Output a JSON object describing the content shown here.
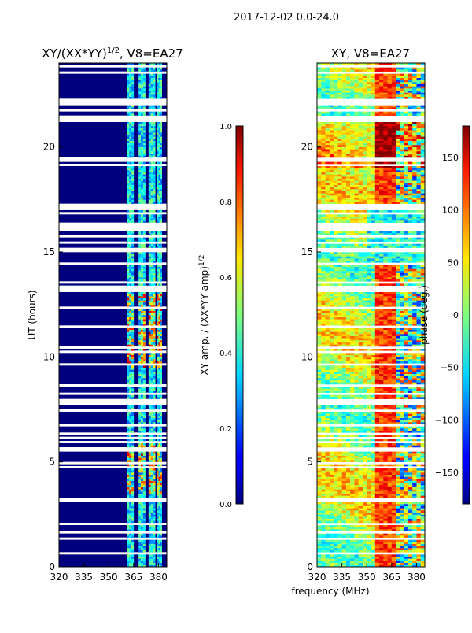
{
  "figure": {
    "suptitle": "2017-12-02 0.0-24.0",
    "xlabel": "frequency (MHz)"
  },
  "chart_data": [
    {
      "type": "heatmap",
      "title_main": "XY/(XX*YY)",
      "title_sup": "1/2",
      "title_tail": ", V8=EA27",
      "xlabel": "",
      "ylabel": "UT (hours)",
      "xlim": [
        320,
        385
      ],
      "ylim": [
        0,
        24
      ],
      "xticks": [
        320,
        335,
        350,
        365,
        380
      ],
      "yticks": [
        0,
        5,
        10,
        15,
        20
      ],
      "colormap": "jet",
      "colorbar": {
        "label": "XY amp. / (XX*YY amp)",
        "label_sup": "1/2",
        "range": [
          0.0,
          1.0
        ],
        "ticks": [
          "0.0",
          "0.2",
          "0.4",
          "0.6",
          "0.8",
          "1.0"
        ]
      },
      "active_bands_mhz": [
        [
          361,
          365
        ],
        [
          368,
          372
        ],
        [
          374,
          378
        ],
        [
          379,
          382
        ]
      ],
      "bright_ut_hours": [
        [
          9.5,
          13
        ],
        [
          3.5,
          6
        ]
      ]
    },
    {
      "type": "heatmap",
      "title": "XY, V8=EA27",
      "xlabel": "",
      "ylabel": "",
      "xlim": [
        320,
        385
      ],
      "ylim": [
        0,
        24
      ],
      "xticks": [
        320,
        335,
        350,
        365,
        380
      ],
      "yticks": [
        0,
        5,
        10,
        15,
        20
      ],
      "colormap": "jet",
      "colorbar": {
        "label": "phase (deg.)",
        "range": [
          -180,
          180
        ],
        "ticks": [
          "150",
          "100",
          "50",
          "0",
          "−50",
          "−100",
          "−150"
        ]
      }
    }
  ],
  "colors": {
    "jet_low": "#00007f",
    "jet_mid": "#7fff7f",
    "jet_high": "#7f0000",
    "gap": "#ffffff"
  }
}
